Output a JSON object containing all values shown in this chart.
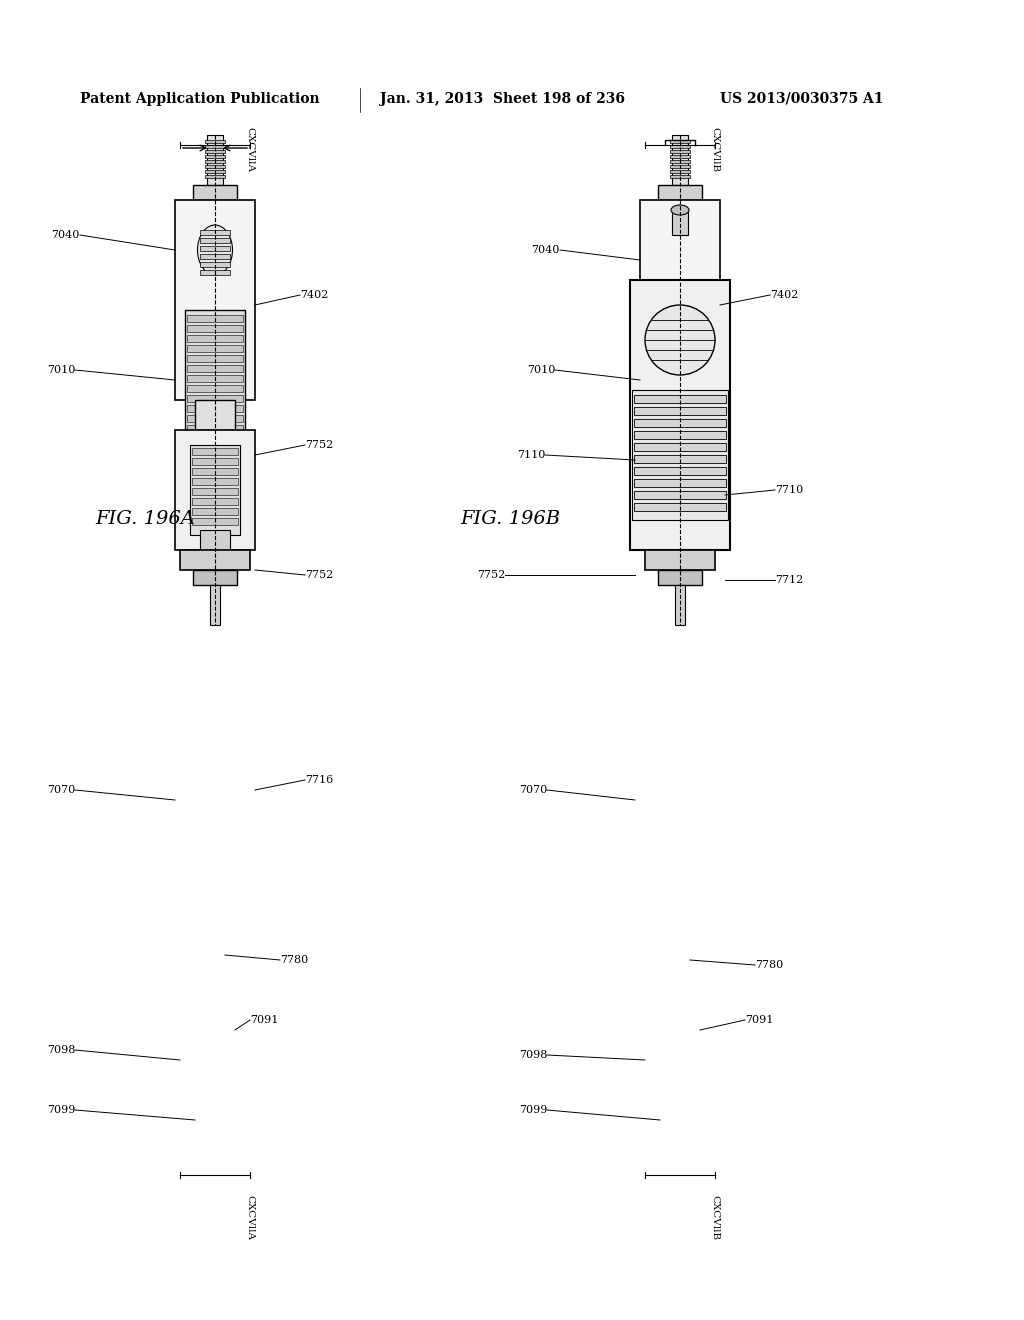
{
  "background_color": "#ffffff",
  "header_left": "Patent Application Publication",
  "header_center": "Jan. 31, 2013  Sheet 198 of 236",
  "header_right": "US 2013/0030375 A1",
  "fig_a_label": "FIG. 196A",
  "fig_b_label": "FIG. 196B",
  "labels_left": [
    "CXCVllA",
    "7040",
    "7402",
    "7010",
    "7752",
    "7752",
    "7070",
    "7716",
    "7780",
    "7091",
    "7098",
    "7099",
    "CXCVllA"
  ],
  "labels_right": [
    "CXCVllB",
    "7040",
    "7402",
    "7010",
    "7110",
    "7752",
    "7710",
    "7712",
    "7070",
    "7780",
    "7091",
    "7098",
    "7099",
    "CXCVllB"
  ]
}
